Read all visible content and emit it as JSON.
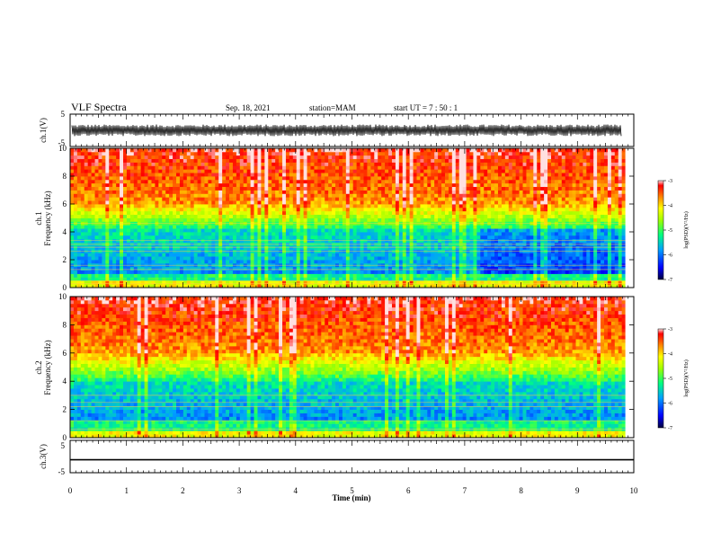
{
  "header": {
    "title": "VLF Spectra",
    "date": "Sep. 18, 2021",
    "station": "station=MAM",
    "start": "start  UT  =   7 : 50 : 1"
  },
  "chart_data": [
    {
      "type": "line",
      "panel": "ch1-waveform",
      "ylabel": "ch.1(V)",
      "ylim": [
        -5,
        5
      ],
      "yticks": [
        "5",
        "-5"
      ],
      "xlim": [
        0,
        10
      ],
      "description_values": {
        "amplitude_range": [
          -1.8,
          1.8
        ]
      }
    },
    {
      "type": "heatmap",
      "panel": "ch1-spectrogram",
      "ylabel": "ch.1 Frequency (kHz)",
      "ylabel_lines": [
        "ch.1",
        "Frequency (kHz)"
      ],
      "ylim": [
        0,
        10
      ],
      "yticks": [
        "0",
        "2",
        "4",
        "6",
        "8",
        "10"
      ],
      "xlim": [
        0,
        10
      ],
      "data_end_min": 9.85,
      "colorbar": {
        "label": "log(PSD)(V²/Hz)",
        "range": [
          -7,
          -3
        ],
        "ticks": [
          "-3",
          "-4",
          "-5",
          "-6",
          "-7"
        ]
      },
      "noise_floor_break_min": 7.25,
      "low_band_khz": [
        0.9,
        4.2
      ],
      "line_bands_khz": [
        0.3,
        0.5,
        1.3,
        1.6,
        2.6,
        2.9,
        3.1,
        3.4,
        4.6
      ]
    },
    {
      "type": "heatmap",
      "panel": "ch2-spectrogram",
      "ylabel": "ch.2 Frequency (kHz)",
      "ylabel_lines": [
        "ch.2",
        "Frequency (kHz)"
      ],
      "ylim": [
        0,
        10
      ],
      "yticks": [
        "0",
        "2",
        "4",
        "6",
        "8",
        "10"
      ],
      "xlim": [
        0,
        10
      ],
      "data_end_min": 9.85,
      "colorbar": {
        "label": "log(PSD)(V²/Hz)",
        "range": [
          -7,
          -3
        ],
        "ticks": [
          "-3",
          "-4",
          "-5",
          "-6",
          "-7"
        ]
      },
      "low_band_khz": [
        1.2,
        4.0
      ],
      "line_bands_khz": [
        0.6,
        1.2,
        2.2,
        2.5,
        3.0
      ]
    },
    {
      "type": "line",
      "panel": "ch3-waveform",
      "ylabel": "ch.3(V)",
      "ylim": [
        -5,
        5
      ],
      "yticks": [
        "5",
        "-5"
      ],
      "xlim": [
        0,
        10
      ],
      "values": [
        -1,
        -1
      ]
    }
  ],
  "xaxis": {
    "label": "Time  (min)",
    "ticks": [
      "0",
      "1",
      "2",
      "3",
      "4",
      "5",
      "6",
      "7",
      "8",
      "9",
      "10"
    ]
  }
}
